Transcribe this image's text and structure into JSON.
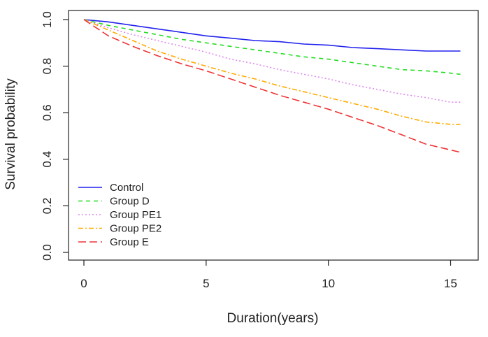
{
  "chart_data": {
    "type": "line",
    "title": "",
    "xlabel": "Duration(years)",
    "ylabel": "Survival probability",
    "xlim": [
      0,
      15.5
    ],
    "ylim": [
      0,
      1
    ],
    "xticks": [
      0,
      5,
      10,
      15
    ],
    "yticks": [
      0.0,
      0.2,
      0.4,
      0.6,
      0.8,
      1.0
    ],
    "ytick_labels": [
      "0.0",
      "0.2",
      "0.4",
      "0.6",
      "0.8",
      "1.0"
    ],
    "grid": false,
    "legend": {
      "position": "bottom-left"
    },
    "series": [
      {
        "name": "Control",
        "color": "#2222ee",
        "dash": "solid",
        "x": [
          0,
          1,
          2,
          3,
          4,
          5,
          6,
          7,
          8,
          9,
          10,
          11,
          12,
          13,
          14,
          15,
          15.4
        ],
        "y": [
          1.0,
          0.99,
          0.975,
          0.96,
          0.945,
          0.93,
          0.92,
          0.91,
          0.905,
          0.895,
          0.89,
          0.88,
          0.875,
          0.87,
          0.865,
          0.865,
          0.865
        ]
      },
      {
        "name": "Group D",
        "color": "#22dd22",
        "dash": "dashed",
        "x": [
          0,
          1,
          2,
          3,
          4,
          5,
          6,
          7,
          8,
          9,
          10,
          11,
          12,
          13,
          14,
          15,
          15.4
        ],
        "y": [
          1.0,
          0.975,
          0.955,
          0.935,
          0.915,
          0.9,
          0.885,
          0.87,
          0.855,
          0.84,
          0.83,
          0.815,
          0.8,
          0.785,
          0.78,
          0.77,
          0.765
        ]
      },
      {
        "name": "Group PE1",
        "color": "#dd88ee",
        "dash": "dotted",
        "x": [
          0,
          1,
          2,
          3,
          4,
          5,
          6,
          7,
          8,
          9,
          10,
          11,
          12,
          13,
          14,
          15,
          15.4
        ],
        "y": [
          1.0,
          0.965,
          0.935,
          0.91,
          0.885,
          0.86,
          0.83,
          0.81,
          0.785,
          0.765,
          0.745,
          0.72,
          0.7,
          0.68,
          0.665,
          0.645,
          0.645
        ]
      },
      {
        "name": "Group PE2",
        "color": "#ffaa00",
        "dash": "dashdot",
        "x": [
          0,
          1,
          2,
          3,
          4,
          5,
          6,
          7,
          8,
          9,
          10,
          11,
          12,
          13,
          14,
          15,
          15.4
        ],
        "y": [
          1.0,
          0.955,
          0.91,
          0.865,
          0.83,
          0.8,
          0.77,
          0.745,
          0.715,
          0.69,
          0.665,
          0.64,
          0.615,
          0.585,
          0.56,
          0.55,
          0.55
        ]
      },
      {
        "name": "Group E",
        "color": "#ee3333",
        "dash": "longdash",
        "x": [
          0,
          1,
          2,
          3,
          4,
          5,
          6,
          7,
          8,
          9,
          10,
          11,
          12,
          13,
          14,
          15,
          15.4
        ],
        "y": [
          1.0,
          0.93,
          0.885,
          0.845,
          0.81,
          0.78,
          0.745,
          0.71,
          0.675,
          0.645,
          0.615,
          0.58,
          0.545,
          0.505,
          0.465,
          0.44,
          0.43
        ]
      }
    ]
  }
}
